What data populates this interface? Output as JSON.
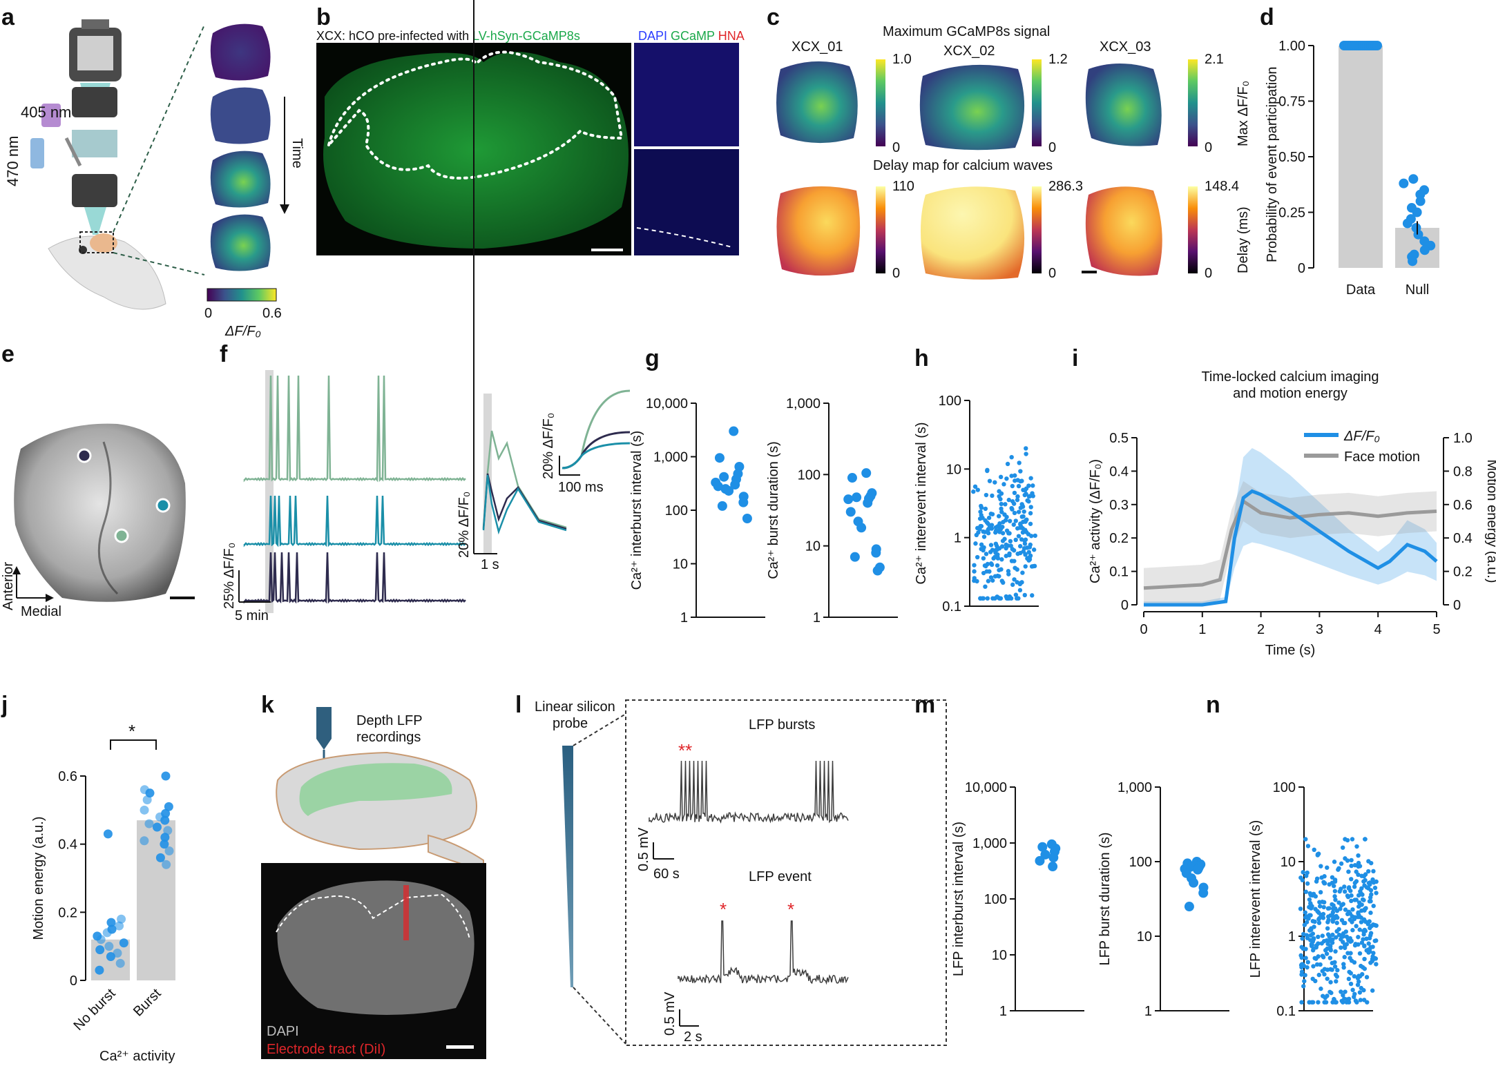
{
  "panels": {
    "a": {
      "label": "a",
      "nm405": "405 nm",
      "nm470": "470 nm",
      "time": "Time",
      "cbar_min": "0",
      "cbar_max": "0.6",
      "cbar_label": "ΔF/F₀"
    },
    "b": {
      "label": "b",
      "title_prefix": "XCX: hCO pre-infected with ",
      "title_green": "LV-hSyn-GCaMP8s",
      "stain_dapi": "DAPI",
      "stain_gcamp": "GCaMP",
      "stain_hna": "HNA"
    },
    "c": {
      "label": "c",
      "title_top": "Maximum GCaMP8s signal",
      "title_bottom": "Delay map for calcium waves",
      "names": [
        "XCX_01",
        "XCX_02",
        "XCX_03"
      ],
      "max_top": [
        "1.0",
        "1.2",
        "2.1"
      ],
      "min_top": [
        "0",
        "0",
        "0"
      ],
      "max_bottom": [
        "110",
        "286.3",
        "148.4"
      ],
      "min_bottom": [
        "0",
        "0",
        "0"
      ],
      "cbar_label_top": "Max ΔF/F₀",
      "cbar_label_bottom": "Delay (ms)"
    },
    "d": {
      "label": "d",
      "ylabel": "Probability of event participation"
    },
    "e": {
      "label": "e",
      "anterior": "Anterior",
      "medial": "Medial"
    },
    "f": {
      "label": "f",
      "scale_y": "25% ΔF/F₀",
      "scale_x": "5 min",
      "zoom_y": "20% ΔF/F₀",
      "zoom_x": "1 s",
      "inset_y": "20% ΔF/F₀",
      "inset_x": "100 ms"
    },
    "g": {
      "label": "g"
    },
    "h": {
      "label": "h"
    },
    "i": {
      "label": "i",
      "title1": "Time-locked calcium imaging",
      "title2": "and motion energy"
    },
    "j": {
      "label": "j",
      "sig": "*",
      "group_label": "Ca²⁺ activity"
    },
    "k": {
      "label": "k",
      "probe_text1": "Depth LFP",
      "probe_text2": "recordings",
      "stain_dapi": "DAPI",
      "stain_tract": "Electrode tract (DiI)"
    },
    "l": {
      "label": "l",
      "probe1": "Linear silicon",
      "probe2": "probe",
      "bursts_title": "LFP bursts",
      "bursts_mark": "**",
      "event_title": "LFP event",
      "event_mark": "*",
      "scale_mv": "0.5 mV",
      "scale_60s": "60 s",
      "scale_2s": "2 s"
    },
    "m": {
      "label": "m"
    },
    "n": {
      "label": "n"
    }
  },
  "colors": {
    "blue": "#1f8fe5",
    "gray_bar": "#cfcfcf",
    "trace_green": "#7fb394",
    "trace_teal": "#1a8fa8",
    "trace_dark": "#2e2b4e",
    "red": "#e0262a",
    "brain_fill": "#d6d6d6",
    "lfp": "#3d3d3d"
  },
  "chart_data": [
    {
      "id": "d",
      "type": "bar",
      "categories": [
        "Data",
        "Null"
      ],
      "values": [
        1.0,
        0.18
      ],
      "ylabel": "Probability of event participation",
      "ylim": [
        0,
        1
      ],
      "yticks": [
        "0",
        "0.25",
        "0.50",
        "0.75",
        "1.00"
      ],
      "points": {
        "Data": [
          1,
          1,
          1,
          1,
          1,
          1,
          1,
          1,
          1,
          1,
          1,
          1,
          1,
          1,
          1,
          1,
          1
        ],
        "Null": [
          0.4,
          0.38,
          0.35,
          0.33,
          0.3,
          0.27,
          0.25,
          0.22,
          0.2,
          0.18,
          0.15,
          0.12,
          0.1,
          0.08,
          0.06,
          0.05,
          0.03
        ]
      }
    },
    {
      "id": "g1",
      "type": "scatter",
      "scale": "log",
      "ylabel": "Ca²⁺ interburst interval (s)",
      "ylim": [
        1,
        10000
      ],
      "yticks": [
        "1",
        "10",
        "100",
        "1,000",
        "10,000"
      ],
      "values": [
        3000,
        950,
        650,
        480,
        420,
        380,
        330,
        300,
        280,
        250,
        230,
        180,
        140,
        120,
        70
      ]
    },
    {
      "id": "g2",
      "type": "scatter",
      "scale": "log",
      "ylabel": "Ca²⁺ burst duration (s)",
      "ylim": [
        1,
        1000
      ],
      "yticks": [
        "1",
        "10",
        "100",
        "1,000"
      ],
      "values": [
        105,
        90,
        55,
        50,
        48,
        46,
        45,
        40,
        30,
        22,
        18,
        9,
        8,
        7,
        5,
        4.5
      ]
    },
    {
      "id": "h",
      "type": "scatter",
      "scale": "log",
      "ylabel": "Ca²⁺ interevent interval (s)",
      "ylim": [
        0.1,
        100
      ],
      "yticks": [
        "0.1",
        "1",
        "10",
        "100"
      ],
      "n_points": 260,
      "median": 1.0
    },
    {
      "id": "i",
      "type": "line",
      "xlabel": "Time (s)",
      "xlim": [
        0,
        5
      ],
      "xticks": [
        "0",
        "1",
        "2",
        "3",
        "4",
        "5"
      ],
      "ylabel": "Ca²⁺ activity (ΔF/F₀)",
      "ylim": [
        0,
        0.5
      ],
      "yticks": [
        "0",
        "0.1",
        "0.2",
        "0.3",
        "0.4",
        "0.5"
      ],
      "ylabel_right": "Motion energy (a.u.)",
      "ylim_right": [
        0,
        1.0
      ],
      "yticks_right": [
        "0",
        "0.2",
        "0.4",
        "0.6",
        "0.8",
        "1.0"
      ],
      "series": [
        {
          "name": "ΔF/F₀",
          "x": [
            0,
            1,
            1.4,
            1.55,
            1.7,
            1.85,
            2.0,
            2.5,
            3.0,
            3.5,
            3.8,
            4.0,
            4.2,
            4.5,
            4.8,
            5.0
          ],
          "y": [
            0,
            0,
            0.01,
            0.2,
            0.32,
            0.34,
            0.33,
            0.28,
            0.22,
            0.16,
            0.13,
            0.11,
            0.13,
            0.18,
            0.16,
            0.13
          ]
        },
        {
          "name": "Face motion",
          "x": [
            0,
            0.5,
            1.0,
            1.3,
            1.5,
            1.7,
            2.0,
            2.5,
            3.0,
            3.5,
            4.0,
            4.5,
            5.0
          ],
          "y": [
            0.1,
            0.11,
            0.12,
            0.15,
            0.45,
            0.62,
            0.55,
            0.52,
            0.54,
            0.55,
            0.53,
            0.55,
            0.56
          ]
        }
      ],
      "legend": "top-right"
    },
    {
      "id": "j",
      "type": "bar",
      "categories": [
        "No burst",
        "Burst"
      ],
      "values": [
        0.12,
        0.47
      ],
      "ylabel": "Motion energy (a.u.)",
      "ylim": [
        0,
        0.6
      ],
      "yticks": [
        "0",
        "0.2",
        "0.4",
        "0.6"
      ],
      "points": {
        "No burst": [
          0.43,
          0.18,
          0.17,
          0.16,
          0.15,
          0.14,
          0.13,
          0.12,
          0.11,
          0.1,
          0.09,
          0.08,
          0.07,
          0.05,
          0.03
        ],
        "Burst": [
          0.6,
          0.56,
          0.55,
          0.53,
          0.51,
          0.5,
          0.49,
          0.48,
          0.47,
          0.46,
          0.45,
          0.44,
          0.42,
          0.41,
          0.4,
          0.38,
          0.36,
          0.34
        ]
      }
    },
    {
      "id": "m1",
      "type": "scatter",
      "scale": "log",
      "ylabel": "LFP interburst interval (s)",
      "ylim": [
        1,
        10000
      ],
      "yticks": [
        "1",
        "10",
        "100",
        "1,000",
        "10,000"
      ],
      "values": [
        950,
        850,
        800,
        700,
        620,
        550,
        480,
        380
      ]
    },
    {
      "id": "m2",
      "type": "scatter",
      "scale": "log",
      "ylabel": "LFP burst duration (s)",
      "ylim": [
        1,
        1000
      ],
      "yticks": [
        "1",
        "10",
        "100",
        "1,000"
      ],
      "values": [
        100,
        95,
        92,
        88,
        85,
        82,
        80,
        78,
        70,
        60,
        52,
        45,
        38,
        25
      ]
    },
    {
      "id": "n",
      "type": "scatter",
      "scale": "log",
      "ylabel": "LFP interevent interval (s)",
      "ylim": [
        0.1,
        100
      ],
      "yticks": [
        "0.1",
        "1",
        "10",
        "100"
      ],
      "n_points": 420,
      "median": 1.3
    }
  ]
}
